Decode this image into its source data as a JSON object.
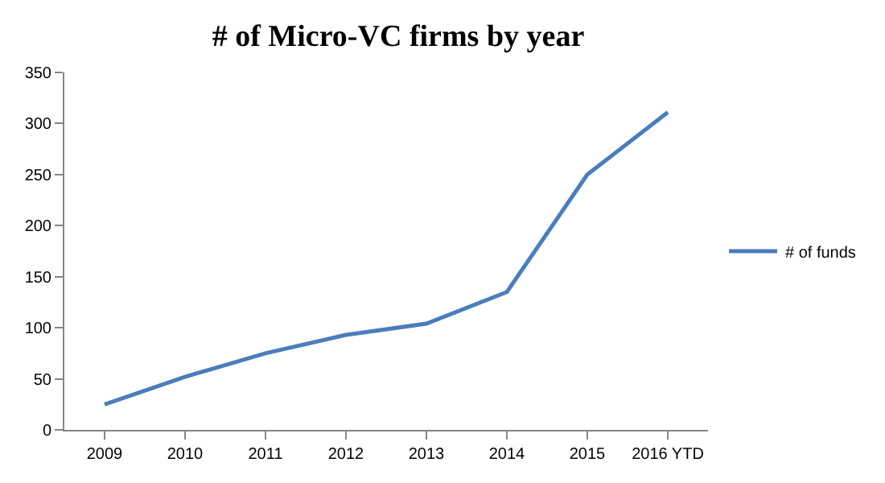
{
  "chart_data": {
    "type": "line",
    "title": "# of Micro-VC firms by year",
    "categories": [
      "2009",
      "2010",
      "2011",
      "2012",
      "2013",
      "2014",
      "2015",
      "2016 YTD"
    ],
    "series": [
      {
        "name": "# of funds",
        "color": "#4a7ebb",
        "values": [
          25,
          52,
          75,
          93,
          104,
          135,
          250,
          311
        ]
      }
    ],
    "ylim": [
      0,
      350
    ],
    "yticks": [
      0,
      50,
      100,
      150,
      200,
      250,
      300,
      350
    ],
    "grid": false,
    "legend": "right",
    "marker": "none",
    "line_style": "solid"
  }
}
